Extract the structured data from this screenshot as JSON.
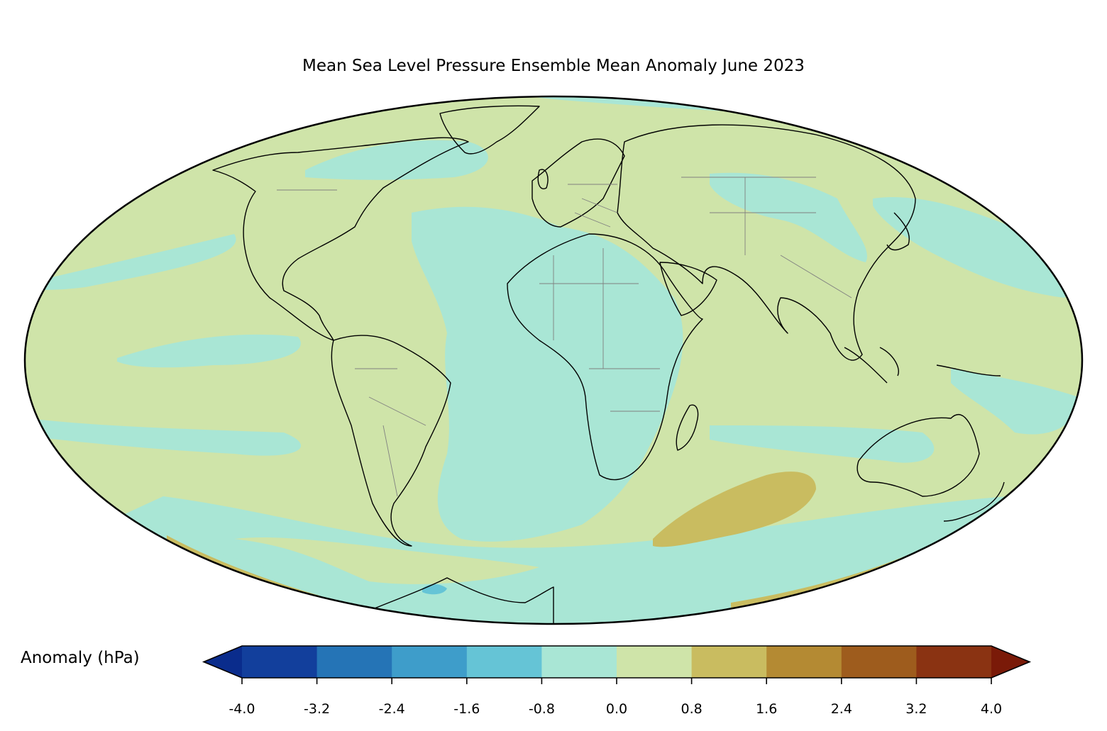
{
  "title": "Mean Sea Level Pressure Ensemble Mean Anomaly June 2023",
  "colorbar": {
    "label": "Anomaly (hPa)",
    "ticks": [
      "-4.0",
      "-3.2",
      "-2.4",
      "-1.6",
      "-0.8",
      "0.0",
      "0.8",
      "1.6",
      "2.4",
      "3.2",
      "4.0"
    ],
    "levels": [
      -4.0,
      -3.2,
      -2.4,
      -1.6,
      -0.8,
      0.0,
      0.8,
      1.6,
      2.4,
      3.2,
      4.0
    ],
    "colors": [
      "#123f9c",
      "#2574b6",
      "#3e9dca",
      "#65c4d6",
      "#a9e6d5",
      "#cfe4a9",
      "#c9bc60",
      "#b48a33",
      "#9e5c1d",
      "#8a3312"
    ],
    "under_color": "#0a2c8c",
    "over_color": "#7a1a08",
    "extend": "both"
  },
  "map": {
    "projection": "Mollweide",
    "region": "global",
    "coastlines": true,
    "country_borders": true,
    "field_colors": {
      "near_zero_negative": "#a9e6d5",
      "near_zero_positive": "#cfe4a9",
      "positive_0_8_to_1_6": "#c9bc60",
      "negative_minus_1_6": "#65c4d6"
    }
  }
}
